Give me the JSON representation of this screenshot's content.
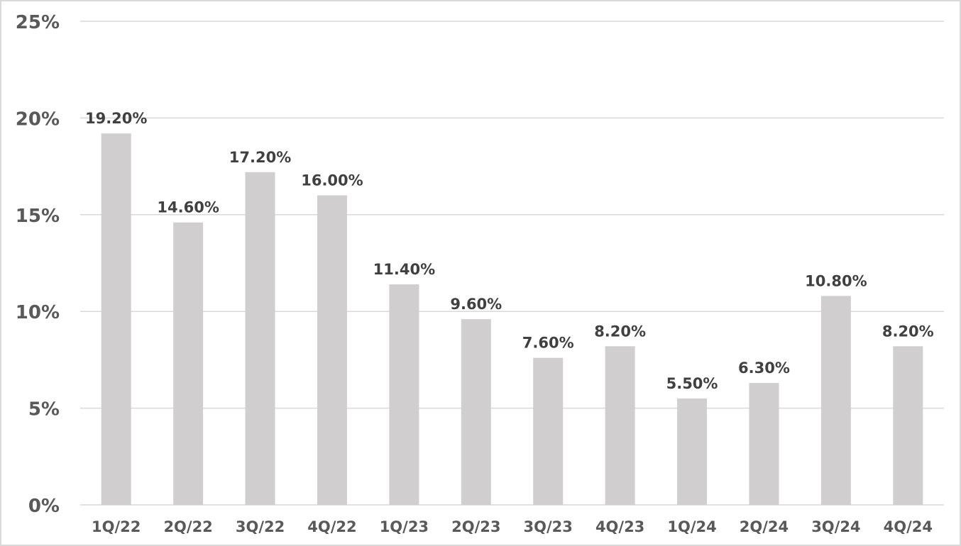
{
  "chart_data": {
    "type": "bar",
    "title": "",
    "xlabel": "",
    "ylabel": "",
    "categories": [
      "1Q/22",
      "2Q/22",
      "3Q/22",
      "4Q/22",
      "1Q/23",
      "2Q/23",
      "3Q/23",
      "4Q/23",
      "1Q/24",
      "2Q/24",
      "3Q/24",
      "4Q/24"
    ],
    "values": [
      19.2,
      14.6,
      17.2,
      16.0,
      11.4,
      9.6,
      7.6,
      8.2,
      5.5,
      6.3,
      10.8,
      8.2
    ],
    "data_labels": [
      "19.20%",
      "14.60%",
      "17.20%",
      "16.00%",
      "11.40%",
      "9.60%",
      "7.60%",
      "8.20%",
      "5.50%",
      "6.30%",
      "10.80%",
      "8.20%"
    ],
    "ylim": [
      0,
      25
    ],
    "yticks": [
      0,
      5,
      10,
      15,
      20,
      25
    ],
    "ytick_labels": [
      "0%",
      "5%",
      "10%",
      "15%",
      "20%",
      "25%"
    ],
    "grid": true,
    "legend": "none",
    "bar_color": "#d0cece",
    "grid_color": "#d9d9d9"
  }
}
